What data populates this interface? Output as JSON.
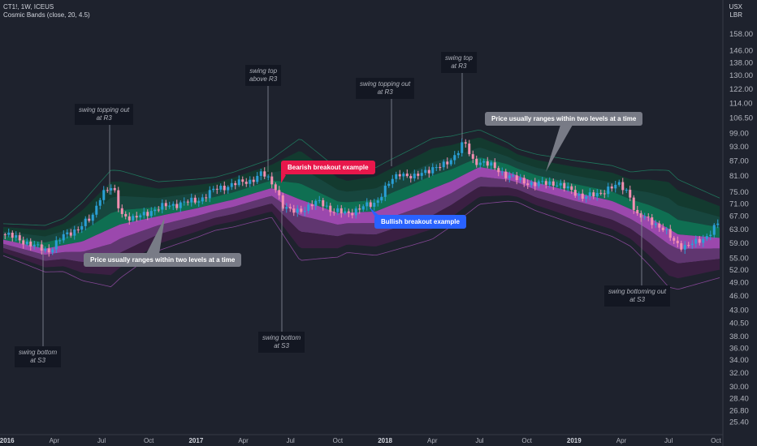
{
  "header": {
    "symbol_line": "CT1!, 1W, ICEUS",
    "indicator_line": "Cosmic Bands (close, 20, 4.5)"
  },
  "currency": {
    "code": "USX",
    "unit": "LBR"
  },
  "colors": {
    "background": "#1e222d",
    "candle_up": "#2a9fd6",
    "candle_down": "#f48fb1",
    "band_upper_fill": "#0b8a5f",
    "band_lower_fill": "#b24fc4",
    "band_outer_upper": "#123d30",
    "band_outer_lower": "#3d1f45",
    "bearish_callout": "#e8174b",
    "bullish_callout": "#2962ff",
    "neutral_callout": "#787b86"
  },
  "annotations": {
    "swing_topping_out_r3_a": "swing topping out\nat R3",
    "swing_top_above_r3": "swing top\nabove R3",
    "swing_topping_out_r3_b": "swing topping out\nat R3",
    "swing_top_r3": "swing top\nat R3",
    "swing_bottom_s3_a": "swing bottom\nat S3",
    "swing_bottom_s3_b": "swing bottom\nat S3",
    "swing_bottoming_out_s3": "swing bottoming out\nat S3",
    "bearish_breakout": "Bearish breakout example",
    "bullish_breakout": "Bullish breakout example",
    "ranges_left": "Price usually ranges within two levels at a time",
    "ranges_right": "Price usually ranges within two levels at a time"
  },
  "chart_data": {
    "type": "candlestick",
    "title": "CT1!, 1W, ICEUS",
    "ylabel": "",
    "y_scale": "log",
    "ylim": [
      24.5,
      168
    ],
    "y_ticks": [
      158.0,
      146.0,
      138.0,
      130.0,
      122.0,
      114.0,
      106.5,
      99.0,
      93.0,
      87.0,
      81.0,
      75.0,
      71.0,
      67.0,
      63.0,
      59.0,
      55.0,
      52.0,
      49.0,
      46.0,
      43.0,
      40.5,
      38.0,
      36.0,
      34.0,
      32.0,
      30.0,
      28.4,
      26.8,
      25.4
    ],
    "x_ticks": [
      {
        "label": "2016",
        "t": 2016.0,
        "bold": true
      },
      {
        "label": "Apr",
        "t": 2016.25,
        "bold": false
      },
      {
        "label": "Jul",
        "t": 2016.5,
        "bold": false
      },
      {
        "label": "Oct",
        "t": 2016.75,
        "bold": false
      },
      {
        "label": "2017",
        "t": 2017.0,
        "bold": true
      },
      {
        "label": "Apr",
        "t": 2017.25,
        "bold": false
      },
      {
        "label": "Jul",
        "t": 2017.5,
        "bold": false
      },
      {
        "label": "Oct",
        "t": 2017.75,
        "bold": false
      },
      {
        "label": "2018",
        "t": 2018.0,
        "bold": true
      },
      {
        "label": "Apr",
        "t": 2018.25,
        "bold": false
      },
      {
        "label": "Jul",
        "t": 2018.5,
        "bold": false
      },
      {
        "label": "Oct",
        "t": 2018.75,
        "bold": false
      },
      {
        "label": "2019",
        "t": 2019.0,
        "bold": true
      },
      {
        "label": "Apr",
        "t": 2019.25,
        "bold": false
      },
      {
        "label": "Jul",
        "t": 2019.5,
        "bold": false
      },
      {
        "label": "Oct",
        "t": 2019.75,
        "bold": false
      }
    ],
    "xlim": [
      2015.98,
      2019.77
    ],
    "price_path": [
      {
        "t": 2015.98,
        "p": 61.5
      },
      {
        "t": 2016.05,
        "p": 60.5
      },
      {
        "t": 2016.15,
        "p": 58.0
      },
      {
        "t": 2016.22,
        "p": 57.0
      },
      {
        "t": 2016.3,
        "p": 61.0
      },
      {
        "t": 2016.38,
        "p": 63.5
      },
      {
        "t": 2016.45,
        "p": 66.5
      },
      {
        "t": 2016.5,
        "p": 75.0
      },
      {
        "t": 2016.56,
        "p": 76.5
      },
      {
        "t": 2016.6,
        "p": 68.0
      },
      {
        "t": 2016.67,
        "p": 66.0
      },
      {
        "t": 2016.75,
        "p": 68.5
      },
      {
        "t": 2016.85,
        "p": 70.5
      },
      {
        "t": 2016.95,
        "p": 71.5
      },
      {
        "t": 2017.02,
        "p": 72.5
      },
      {
        "t": 2017.1,
        "p": 76.0
      },
      {
        "t": 2017.2,
        "p": 78.0
      },
      {
        "t": 2017.28,
        "p": 79.0
      },
      {
        "t": 2017.35,
        "p": 82.0
      },
      {
        "t": 2017.42,
        "p": 77.0
      },
      {
        "t": 2017.46,
        "p": 70.0
      },
      {
        "t": 2017.5,
        "p": 68.5
      },
      {
        "t": 2017.58,
        "p": 69.5
      },
      {
        "t": 2017.66,
        "p": 72.0
      },
      {
        "t": 2017.72,
        "p": 68.5
      },
      {
        "t": 2017.8,
        "p": 68.0
      },
      {
        "t": 2017.87,
        "p": 69.5
      },
      {
        "t": 2017.95,
        "p": 71.5
      },
      {
        "t": 2018.02,
        "p": 78.0
      },
      {
        "t": 2018.08,
        "p": 82.5
      },
      {
        "t": 2018.15,
        "p": 80.0
      },
      {
        "t": 2018.22,
        "p": 83.5
      },
      {
        "t": 2018.3,
        "p": 84.5
      },
      {
        "t": 2018.36,
        "p": 88.5
      },
      {
        "t": 2018.42,
        "p": 95.0
      },
      {
        "t": 2018.46,
        "p": 87.0
      },
      {
        "t": 2018.52,
        "p": 86.5
      },
      {
        "t": 2018.58,
        "p": 84.0
      },
      {
        "t": 2018.64,
        "p": 81.5
      },
      {
        "t": 2018.72,
        "p": 79.0
      },
      {
        "t": 2018.8,
        "p": 78.0
      },
      {
        "t": 2018.9,
        "p": 78.5
      },
      {
        "t": 2018.97,
        "p": 76.0
      },
      {
        "t": 2019.05,
        "p": 73.5
      },
      {
        "t": 2019.12,
        "p": 74.0
      },
      {
        "t": 2019.18,
        "p": 76.5
      },
      {
        "t": 2019.24,
        "p": 77.5
      },
      {
        "t": 2019.29,
        "p": 75.0
      },
      {
        "t": 2019.33,
        "p": 67.0
      },
      {
        "t": 2019.4,
        "p": 66.0
      },
      {
        "t": 2019.47,
        "p": 63.0
      },
      {
        "t": 2019.53,
        "p": 59.5
      },
      {
        "t": 2019.58,
        "p": 58.0
      },
      {
        "t": 2019.64,
        "p": 59.0
      },
      {
        "t": 2019.7,
        "p": 61.0
      },
      {
        "t": 2019.77,
        "p": 65.0
      }
    ],
    "basis_path": [
      {
        "t": 2015.98,
        "p": 60.0
      },
      {
        "t": 2016.2,
        "p": 57.5
      },
      {
        "t": 2016.4,
        "p": 59.5
      },
      {
        "t": 2016.6,
        "p": 64.5
      },
      {
        "t": 2016.8,
        "p": 67.0
      },
      {
        "t": 2017.0,
        "p": 69.5
      },
      {
        "t": 2017.2,
        "p": 72.5
      },
      {
        "t": 2017.4,
        "p": 76.5
      },
      {
        "t": 2017.55,
        "p": 72.5
      },
      {
        "t": 2017.75,
        "p": 68.0
      },
      {
        "t": 2017.95,
        "p": 68.5
      },
      {
        "t": 2018.15,
        "p": 73.5
      },
      {
        "t": 2018.35,
        "p": 79.0
      },
      {
        "t": 2018.5,
        "p": 84.5
      },
      {
        "t": 2018.65,
        "p": 82.5
      },
      {
        "t": 2018.8,
        "p": 78.5
      },
      {
        "t": 2019.0,
        "p": 75.0
      },
      {
        "t": 2019.2,
        "p": 72.0
      },
      {
        "t": 2019.4,
        "p": 66.5
      },
      {
        "t": 2019.55,
        "p": 61.5
      },
      {
        "t": 2019.77,
        "p": 60.5
      }
    ],
    "band_width_path": [
      {
        "t": 2015.98,
        "w": 0.06
      },
      {
        "t": 2016.3,
        "w": 0.1
      },
      {
        "t": 2016.55,
        "w": 0.22
      },
      {
        "t": 2016.8,
        "w": 0.13
      },
      {
        "t": 2017.1,
        "w": 0.1
      },
      {
        "t": 2017.4,
        "w": 0.11
      },
      {
        "t": 2017.55,
        "w": 0.23
      },
      {
        "t": 2017.8,
        "w": 0.15
      },
      {
        "t": 2018.0,
        "w": 0.17
      },
      {
        "t": 2018.25,
        "w": 0.19
      },
      {
        "t": 2018.45,
        "w": 0.15
      },
      {
        "t": 2018.7,
        "w": 0.1
      },
      {
        "t": 2019.0,
        "w": 0.12
      },
      {
        "t": 2019.3,
        "w": 0.14
      },
      {
        "t": 2019.5,
        "w": 0.22
      },
      {
        "t": 2019.77,
        "w": 0.15
      }
    ]
  }
}
